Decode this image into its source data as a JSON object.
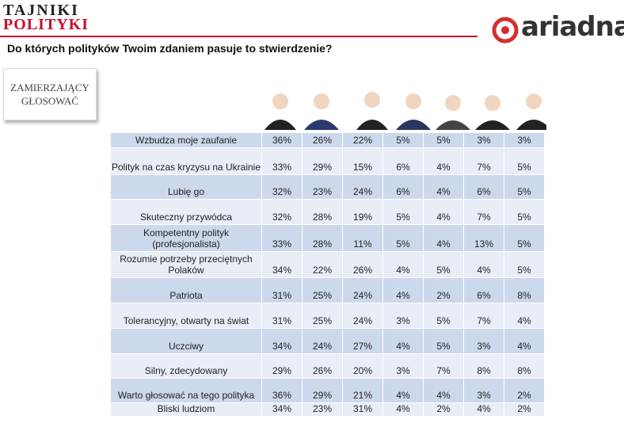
{
  "header": {
    "logo_line1": "TAJNIKI",
    "logo_line2": "POLITYKI",
    "brand": "ariadna"
  },
  "question": "Do których polityków Twoim zdaniem pasuje to stwierdzenie?",
  "segment_label": [
    "ZAMIERZAJĄCY",
    "GŁOSOWAĆ"
  ],
  "table": {
    "rows": [
      {
        "label": "Wzbudza moje zaufanie",
        "values": [
          "36%",
          "26%",
          "22%",
          "5%",
          "5%",
          "3%",
          "3%"
        ]
      },
      {
        "label": "Polityk na czas kryzysu na Ukrainie",
        "values": [
          "33%",
          "29%",
          "15%",
          "6%",
          "4%",
          "7%",
          "5%"
        ]
      },
      {
        "label": "Lubię go",
        "values": [
          "32%",
          "23%",
          "24%",
          "6%",
          "4%",
          "6%",
          "5%"
        ]
      },
      {
        "label": "Skuteczny przywódca",
        "values": [
          "32%",
          "28%",
          "19%",
          "5%",
          "4%",
          "7%",
          "5%"
        ]
      },
      {
        "label": "Kompetentny polityk (profesjonalista)",
        "values": [
          "33%",
          "28%",
          "11%",
          "5%",
          "4%",
          "13%",
          "5%"
        ]
      },
      {
        "label": "Rozumie potrzeby przeciętnych Polaków",
        "values": [
          "34%",
          "22%",
          "26%",
          "4%",
          "5%",
          "4%",
          "5%"
        ]
      },
      {
        "label": "Patriota",
        "values": [
          "31%",
          "25%",
          "24%",
          "4%",
          "2%",
          "6%",
          "8%"
        ]
      },
      {
        "label": "Tolerancyjny, otwarty na świat",
        "values": [
          "31%",
          "25%",
          "24%",
          "3%",
          "5%",
          "7%",
          "4%"
        ]
      },
      {
        "label": "Uczciwy",
        "values": [
          "34%",
          "24%",
          "27%",
          "4%",
          "5%",
          "3%",
          "4%"
        ]
      },
      {
        "label": "Silny, zdecydowany",
        "values": [
          "29%",
          "26%",
          "20%",
          "3%",
          "7%",
          "8%",
          "8%"
        ]
      },
      {
        "label": "Warto głosować na tego polityka",
        "values": [
          "36%",
          "29%",
          "21%",
          "4%",
          "4%",
          "3%",
          "2%"
        ]
      },
      {
        "label": "Bliski ludziom",
        "values": [
          "34%",
          "23%",
          "31%",
          "4%",
          "2%",
          "4%",
          "2%"
        ]
      }
    ]
  }
}
